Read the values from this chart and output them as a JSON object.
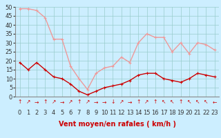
{
  "hours": [
    0,
    1,
    2,
    3,
    4,
    5,
    6,
    7,
    8,
    9,
    10,
    11,
    12,
    13,
    14,
    15,
    16,
    17,
    18,
    19,
    20,
    21,
    22,
    23
  ],
  "wind_avg": [
    19,
    15,
    19,
    15,
    11,
    10,
    7,
    3,
    1,
    3,
    5,
    6,
    7,
    9,
    12,
    13,
    13,
    10,
    9,
    8,
    10,
    13,
    12,
    11
  ],
  "wind_gust": [
    49,
    49,
    48,
    44,
    32,
    32,
    17,
    10,
    4,
    13,
    16,
    17,
    22,
    19,
    30,
    35,
    33,
    33,
    25,
    30,
    24,
    30,
    29,
    26
  ],
  "wind_dir_arrows": [
    "↑",
    "↗",
    "→",
    "↑",
    "↗",
    "→",
    "↗",
    "↑",
    "↗",
    "→",
    "→",
    "↓",
    "↗",
    "→",
    "↑",
    "↗",
    "↑",
    "↖",
    "↖",
    "↑",
    "↖",
    "↖",
    "↖",
    "←"
  ],
  "xlabel": "Vent moyen/en rafales ( km/h )",
  "ylim": [
    0,
    50
  ],
  "yticks": [
    0,
    5,
    10,
    15,
    20,
    25,
    30,
    35,
    40,
    45,
    50
  ],
  "bg_color": "#cceeff",
  "grid_color": "#99cccc",
  "line_avg_color": "#cc0000",
  "line_gust_color": "#ee9999",
  "marker_size": 3,
  "line_width": 1.0,
  "xlabel_color": "#cc0000",
  "xlabel_fontsize": 7,
  "tick_fontsize": 6,
  "arrow_fontsize": 5.5
}
